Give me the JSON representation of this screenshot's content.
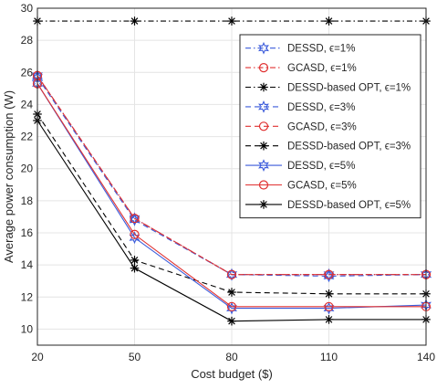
{
  "chart_data": {
    "type": "line",
    "title": "",
    "xlabel": "Cost budget ($)",
    "ylabel": "Average power consumption (W)",
    "x": [
      20,
      50,
      80,
      110,
      140
    ],
    "xticks": [
      "20",
      "50",
      "80",
      "110",
      "140"
    ],
    "xlim": [
      20,
      140
    ],
    "ylim": [
      9,
      30
    ],
    "yticks": [
      "10",
      "12",
      "14",
      "16",
      "18",
      "20",
      "22",
      "24",
      "26",
      "28",
      "30"
    ],
    "grid": true,
    "legend_position": "top-right",
    "series": [
      {
        "name": "DESSD, ϵ=1%",
        "values": [
          25.8,
          16.9,
          13.4,
          13.4,
          13.4
        ],
        "color": "#3b5bdb",
        "dash": "dashdot",
        "marker": "hexagram"
      },
      {
        "name": "GCASD, ϵ=1%",
        "values": [
          25.8,
          16.9,
          13.4,
          13.4,
          13.4
        ],
        "color": "#e03131",
        "dash": "dashdot",
        "marker": "circle"
      },
      {
        "name": "DESSD-based OPT, ϵ=1%",
        "values": [
          29.2,
          29.2,
          29.2,
          29.2,
          29.2
        ],
        "color": "#000000",
        "dash": "dashdot",
        "marker": "asterisk"
      },
      {
        "name": "DESSD, ϵ=3%",
        "values": [
          25.7,
          16.8,
          13.4,
          13.3,
          13.4
        ],
        "color": "#3b5bdb",
        "dash": "dashed",
        "marker": "hexagram"
      },
      {
        "name": "GCASD, ϵ=3%",
        "values": [
          25.8,
          16.9,
          13.4,
          13.4,
          13.4
        ],
        "color": "#e03131",
        "dash": "dashed",
        "marker": "circle"
      },
      {
        "name": "DESSD-based OPT, ϵ=3%",
        "values": [
          23.4,
          14.3,
          12.3,
          12.2,
          12.2
        ],
        "color": "#000000",
        "dash": "dashed",
        "marker": "asterisk"
      },
      {
        "name": "DESSD, ϵ=5%",
        "values": [
          25.3,
          15.7,
          11.3,
          11.3,
          11.5
        ],
        "color": "#3b5bdb",
        "dash": "solid",
        "marker": "hexagram"
      },
      {
        "name": "GCASD, ϵ=5%",
        "values": [
          25.3,
          15.9,
          11.4,
          11.4,
          11.4
        ],
        "color": "#e03131",
        "dash": "solid",
        "marker": "circle"
      },
      {
        "name": "DESSD-based OPT, ϵ=5%",
        "values": [
          23.0,
          13.8,
          10.5,
          10.6,
          10.6
        ],
        "color": "#000000",
        "dash": "solid",
        "marker": "asterisk"
      }
    ]
  }
}
